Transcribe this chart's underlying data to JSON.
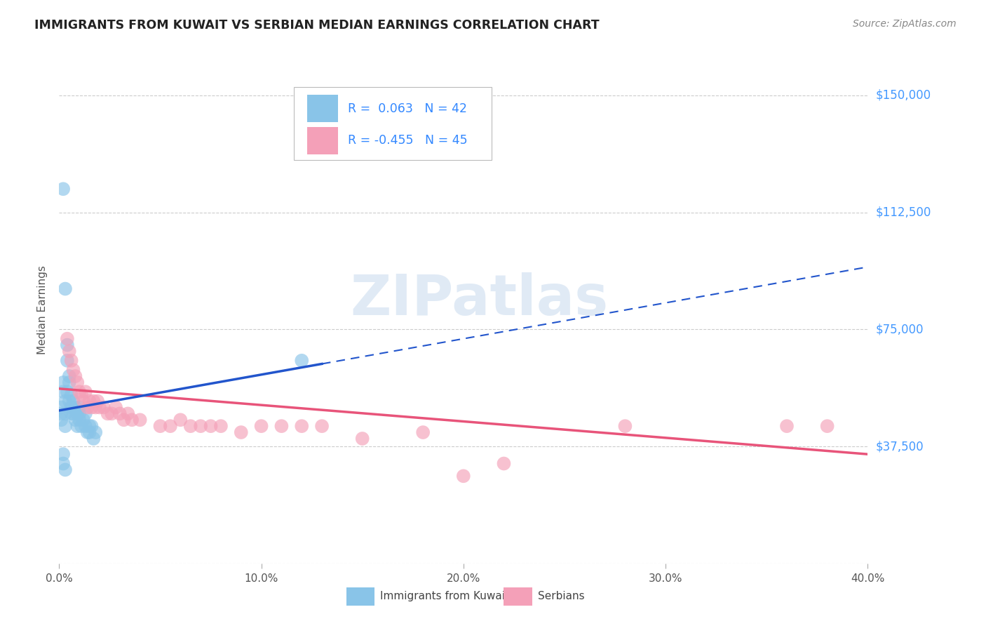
{
  "title": "IMMIGRANTS FROM KUWAIT VS SERBIAN MEDIAN EARNINGS CORRELATION CHART",
  "source": "Source: ZipAtlas.com",
  "ylabel": "Median Earnings",
  "y_ticks": [
    0,
    37500,
    75000,
    112500,
    150000
  ],
  "y_tick_labels": [
    "",
    "$37,500",
    "$75,000",
    "$112,500",
    "$150,000"
  ],
  "xlim": [
    0.0,
    0.4
  ],
  "ylim": [
    0,
    162500
  ],
  "kuwait_R": "0.063",
  "kuwait_N": "42",
  "serbian_R": "-0.455",
  "serbian_N": "45",
  "kuwait_color": "#89C4E8",
  "serbian_color": "#F4A0B8",
  "kuwait_line_color": "#2255CC",
  "serbian_line_color": "#E8547A",
  "grid_color": "#CCCCCC",
  "grid_style": "--",
  "kuwait_points": [
    [
      0.001,
      48000
    ],
    [
      0.001,
      46000
    ],
    [
      0.001,
      50000
    ],
    [
      0.002,
      120000
    ],
    [
      0.002,
      55000
    ],
    [
      0.003,
      88000
    ],
    [
      0.003,
      52000
    ],
    [
      0.003,
      48000
    ],
    [
      0.004,
      65000
    ],
    [
      0.004,
      70000
    ],
    [
      0.004,
      55000
    ],
    [
      0.005,
      60000
    ],
    [
      0.005,
      58000
    ],
    [
      0.005,
      52000
    ],
    [
      0.006,
      50000
    ],
    [
      0.006,
      48000
    ],
    [
      0.006,
      54000
    ],
    [
      0.007,
      52000
    ],
    [
      0.007,
      48000
    ],
    [
      0.008,
      50000
    ],
    [
      0.008,
      46000
    ],
    [
      0.009,
      48000
    ],
    [
      0.009,
      44000
    ],
    [
      0.01,
      50000
    ],
    [
      0.01,
      46000
    ],
    [
      0.01,
      48000
    ],
    [
      0.011,
      44000
    ],
    [
      0.012,
      46000
    ],
    [
      0.013,
      44000
    ],
    [
      0.013,
      48000
    ],
    [
      0.014,
      42000
    ],
    [
      0.015,
      44000
    ],
    [
      0.015,
      42000
    ],
    [
      0.016,
      44000
    ],
    [
      0.017,
      40000
    ],
    [
      0.018,
      42000
    ],
    [
      0.002,
      58000
    ],
    [
      0.003,
      44000
    ],
    [
      0.12,
      65000
    ],
    [
      0.002,
      35000
    ],
    [
      0.002,
      32000
    ],
    [
      0.003,
      30000
    ]
  ],
  "serbian_points": [
    [
      0.004,
      72000
    ],
    [
      0.005,
      68000
    ],
    [
      0.006,
      65000
    ],
    [
      0.007,
      62000
    ],
    [
      0.008,
      60000
    ],
    [
      0.009,
      58000
    ],
    [
      0.01,
      55000
    ],
    [
      0.011,
      54000
    ],
    [
      0.012,
      52000
    ],
    [
      0.013,
      55000
    ],
    [
      0.014,
      50000
    ],
    [
      0.015,
      52000
    ],
    [
      0.016,
      50000
    ],
    [
      0.017,
      52000
    ],
    [
      0.018,
      50000
    ],
    [
      0.019,
      52000
    ],
    [
      0.02,
      50000
    ],
    [
      0.022,
      50000
    ],
    [
      0.024,
      48000
    ],
    [
      0.026,
      48000
    ],
    [
      0.028,
      50000
    ],
    [
      0.03,
      48000
    ],
    [
      0.032,
      46000
    ],
    [
      0.034,
      48000
    ],
    [
      0.036,
      46000
    ],
    [
      0.04,
      46000
    ],
    [
      0.05,
      44000
    ],
    [
      0.055,
      44000
    ],
    [
      0.06,
      46000
    ],
    [
      0.065,
      44000
    ],
    [
      0.07,
      44000
    ],
    [
      0.075,
      44000
    ],
    [
      0.08,
      44000
    ],
    [
      0.09,
      42000
    ],
    [
      0.1,
      44000
    ],
    [
      0.11,
      44000
    ],
    [
      0.12,
      44000
    ],
    [
      0.13,
      44000
    ],
    [
      0.15,
      40000
    ],
    [
      0.18,
      42000
    ],
    [
      0.22,
      32000
    ],
    [
      0.28,
      44000
    ],
    [
      0.36,
      44000
    ],
    [
      0.38,
      44000
    ],
    [
      0.2,
      28000
    ]
  ],
  "watermark": "ZIPatlas",
  "background_color": "#FFFFFF"
}
